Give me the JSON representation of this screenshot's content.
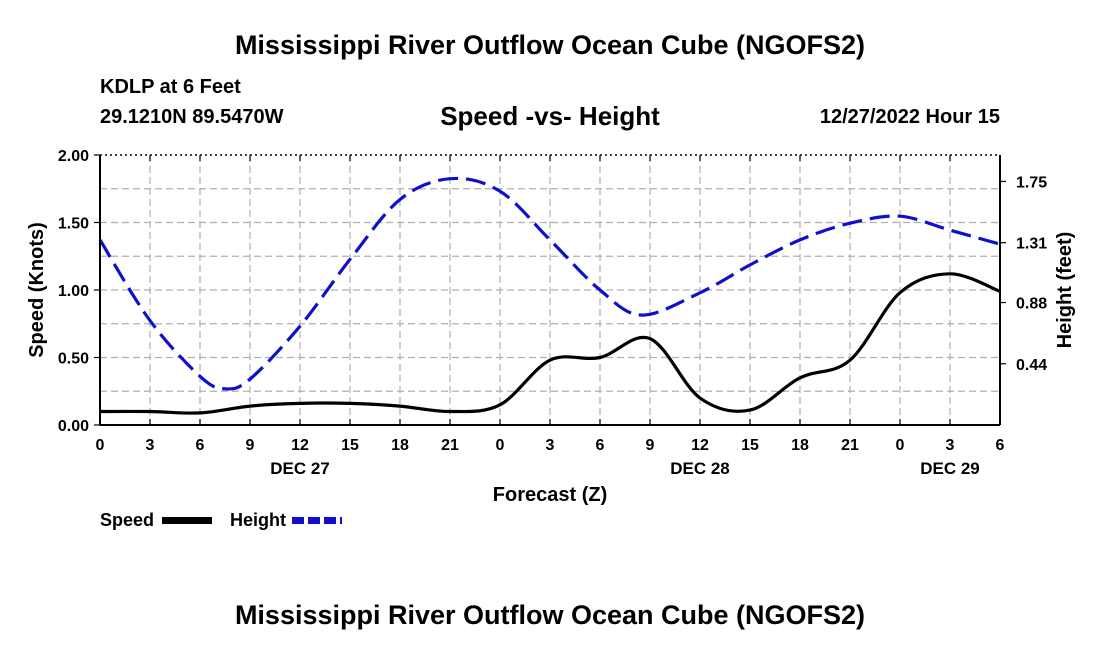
{
  "header": {
    "title": "Mississippi River Outflow Ocean Cube (NGOFS2)",
    "station": "KDLP at 6 Feet",
    "coords": "29.1210N  89.5470W",
    "timestamp": "12/27/2022 Hour 15"
  },
  "footer": {
    "title": "Mississippi River Outflow Ocean Cube (NGOFS2)"
  },
  "legend": {
    "speed_label": "Speed",
    "height_label": "Height"
  },
  "colors": {
    "speed": "#000000",
    "height": "#1010cc",
    "grid": "#b0b0b0"
  },
  "chart_data": {
    "type": "line",
    "title": "Speed -vs- Height",
    "xlabel": "Forecast (Z)",
    "ylabel": "Speed (Knots)",
    "y2label": "Height (feet)",
    "x_ticks": [
      "0",
      "3",
      "6",
      "9",
      "12",
      "15",
      "18",
      "21",
      "0",
      "3",
      "6",
      "9",
      "12",
      "15",
      "18",
      "21",
      "0",
      "3",
      "6"
    ],
    "x_range": [
      0,
      54
    ],
    "date_labels": [
      {
        "hour": 12,
        "label": "DEC 27"
      },
      {
        "hour": 36,
        "label": "DEC 28"
      },
      {
        "hour": 51,
        "label": "DEC 29"
      }
    ],
    "ylim": [
      0,
      2
    ],
    "y_ticks": [
      0,
      0.5,
      1.0,
      1.5,
      2.0
    ],
    "y_tick_labels": [
      "0.00",
      "0.50",
      "1.00",
      "1.50",
      "2.00"
    ],
    "y2lim": [
      0.0,
      1.94
    ],
    "y2_ticks": [
      0.44,
      0.88,
      1.31,
      1.75
    ],
    "y2_tick_labels": [
      "0.44",
      "0.88",
      "1.31",
      "1.75"
    ],
    "series": [
      {
        "name": "Speed",
        "axis": "left",
        "style": "solid",
        "x": [
          0,
          3,
          6,
          9,
          12,
          15,
          18,
          21,
          24,
          27,
          30,
          33,
          36,
          39,
          42,
          45,
          48,
          51,
          54
        ],
        "values": [
          0.1,
          0.1,
          0.09,
          0.14,
          0.16,
          0.16,
          0.14,
          0.1,
          0.15,
          0.48,
          0.5,
          0.64,
          0.2,
          0.11,
          0.35,
          0.48,
          0.98,
          1.12,
          0.99
        ]
      },
      {
        "name": "Height",
        "axis": "right",
        "style": "dashed",
        "x": [
          0,
          3,
          6,
          7.5,
          9,
          12,
          15,
          18,
          21,
          24,
          27,
          30,
          32.5,
          36,
          39,
          42,
          45,
          48,
          51,
          54
        ],
        "values": [
          1.33,
          0.75,
          0.35,
          0.26,
          0.33,
          0.71,
          1.19,
          1.62,
          1.77,
          1.68,
          1.33,
          0.97,
          0.79,
          0.95,
          1.15,
          1.33,
          1.45,
          1.5,
          1.4,
          1.3
        ]
      }
    ]
  }
}
